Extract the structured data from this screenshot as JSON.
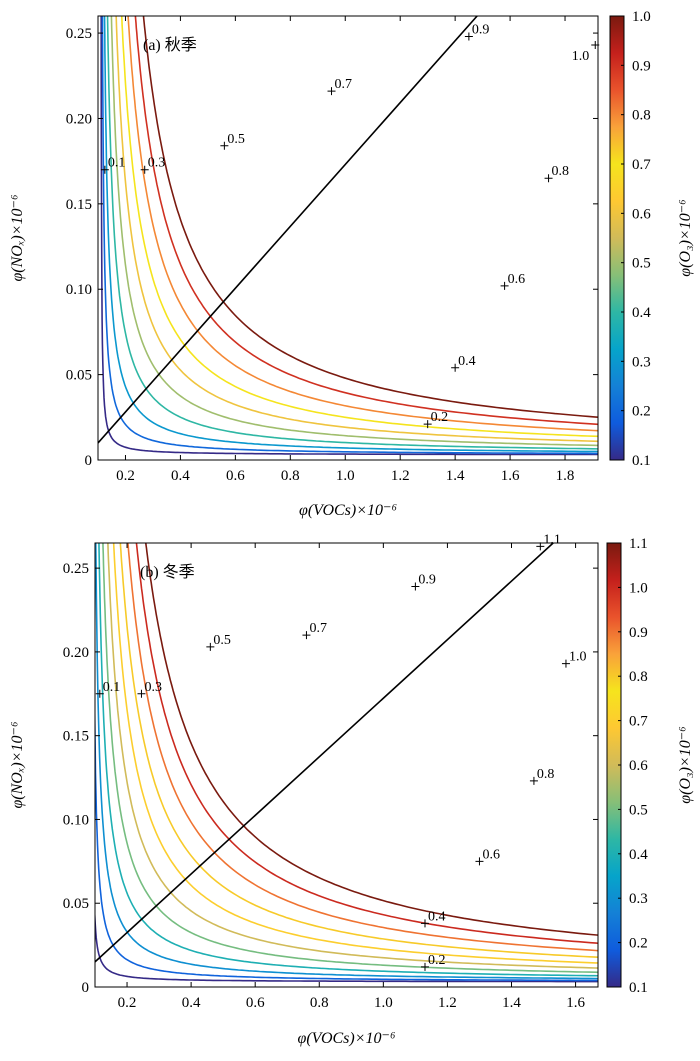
{
  "chart_data": [
    {
      "type": "contour",
      "panel": "(a)",
      "title": "(a) 秋季",
      "xlabel": "φ(VOCs)×10⁻⁶",
      "ylabel": "φ(NOₓ)×10⁻⁶",
      "colorbar_label": "φ(O₃)×10⁻⁶",
      "xlim": [
        0.1,
        1.92
      ],
      "ylim": [
        0,
        0.26
      ],
      "xticks": [
        0.2,
        0.4,
        0.6,
        0.8,
        1.0,
        1.2,
        1.4,
        1.6,
        1.8
      ],
      "yticks": [
        0,
        0.05,
        0.1,
        0.15,
        0.2,
        0.25
      ],
      "xtick_labels": [
        "0.2",
        "0.4",
        "0.6",
        "0.8",
        "1.0",
        "1.2",
        "1.4",
        "1.6",
        "1.8"
      ],
      "ytick_labels": [
        "0",
        "0.05",
        "0.10",
        "0.15",
        "0.20",
        "0.25"
      ],
      "colorbar_range": [
        0.1,
        1.0
      ],
      "colorbar_ticks": [
        0.1,
        0.2,
        0.3,
        0.4,
        0.5,
        0.6,
        0.7,
        0.8,
        0.9,
        1.0
      ],
      "colorbar_tick_labels": [
        "0.1",
        "0.2",
        "0.3",
        "0.4",
        "0.5",
        "0.6",
        "0.7",
        "0.8",
        "0.9",
        "1.0"
      ],
      "contour_levels": [
        0.1,
        0.2,
        0.3,
        0.4,
        0.5,
        0.6,
        0.7,
        0.8,
        0.9,
        1.0
      ],
      "contour_model": {
        "k": 0.04,
        "a": 0.11,
        "b": 0.003
      },
      "ridge_line": {
        "x": [
          0.1,
          1.48
        ],
        "y": [
          0.01,
          0.26
        ]
      },
      "contour_labels": [
        {
          "text": "0.1",
          "x": 0.125,
          "y": 0.17
        },
        {
          "text": "0.3",
          "x": 0.27,
          "y": 0.17
        },
        {
          "text": "0.5",
          "x": 0.56,
          "y": 0.184
        },
        {
          "text": "0.7",
          "x": 0.95,
          "y": 0.216
        },
        {
          "text": "0.9",
          "x": 1.45,
          "y": 0.248
        },
        {
          "text": "1.0",
          "x": 1.91,
          "y": 0.243
        },
        {
          "text": "0.8",
          "x": 1.74,
          "y": 0.165
        },
        {
          "text": "0.6",
          "x": 1.58,
          "y": 0.102
        },
        {
          "text": "0.4",
          "x": 1.4,
          "y": 0.054
        },
        {
          "text": "0.2",
          "x": 1.3,
          "y": 0.021
        }
      ]
    },
    {
      "type": "contour",
      "panel": "(b)",
      "title": "(b) 冬季",
      "xlabel": "φ(VOCs)×10⁻⁶",
      "ylabel": "φ(NOₓ)×10⁻⁶",
      "colorbar_label": "φ(O₃)×10⁻⁶",
      "xlim": [
        0.1,
        1.67
      ],
      "ylim": [
        0,
        0.265
      ],
      "xticks": [
        0.2,
        0.4,
        0.6,
        0.8,
        1.0,
        1.2,
        1.4,
        1.6
      ],
      "yticks": [
        0,
        0.05,
        0.1,
        0.15,
        0.2,
        0.25
      ],
      "xtick_labels": [
        "0.2",
        "0.4",
        "0.6",
        "0.8",
        "1.0",
        "1.2",
        "1.4",
        "1.6"
      ],
      "ytick_labels": [
        "0",
        "0.05",
        "0.10",
        "0.15",
        "0.20",
        "0.25"
      ],
      "colorbar_range": [
        0.1,
        1.1
      ],
      "colorbar_ticks": [
        0.1,
        0.2,
        0.3,
        0.4,
        0.5,
        0.6,
        0.7,
        0.8,
        0.9,
        1.0,
        1.1
      ],
      "colorbar_tick_labels": [
        "0.1",
        "0.2",
        "0.3",
        "0.4",
        "0.5",
        "0.6",
        "0.7",
        "0.8",
        "0.9",
        "1.0",
        "1.1"
      ],
      "contour_levels": [
        0.1,
        0.2,
        0.3,
        0.4,
        0.5,
        0.6,
        0.7,
        0.8,
        0.9,
        1.0,
        1.1
      ],
      "contour_model": {
        "k": 0.0365,
        "a": 0.09,
        "b": 0.003
      },
      "ridge_line": {
        "x": [
          0.1,
          1.53
        ],
        "y": [
          0.015,
          0.265
        ]
      },
      "contour_labels": [
        {
          "text": "0.1",
          "x": 0.115,
          "y": 0.175
        },
        {
          "text": "0.3",
          "x": 0.245,
          "y": 0.175
        },
        {
          "text": "0.5",
          "x": 0.46,
          "y": 0.203
        },
        {
          "text": "0.7",
          "x": 0.76,
          "y": 0.21
        },
        {
          "text": "0.9",
          "x": 1.1,
          "y": 0.239
        },
        {
          "text": "1.1",
          "x": 1.49,
          "y": 0.263
        },
        {
          "text": "1.0",
          "x": 1.57,
          "y": 0.193
        },
        {
          "text": "0.8",
          "x": 1.47,
          "y": 0.123
        },
        {
          "text": "0.6",
          "x": 1.3,
          "y": 0.075
        },
        {
          "text": "0.4",
          "x": 1.13,
          "y": 0.038
        },
        {
          "text": "0.2",
          "x": 1.13,
          "y": 0.012
        }
      ]
    }
  ],
  "colors": {
    "colormap": [
      "#352a87",
      "#0f5cdd",
      "#1481d6",
      "#06a4ca",
      "#2eb7a4",
      "#87bf77",
      "#d1bb59",
      "#fec832",
      "#f5e41d",
      "#f9a23a",
      "#e9532c",
      "#c4201c",
      "#7a1a0f"
    ],
    "axis": "#000000",
    "ridge": "#000000"
  }
}
